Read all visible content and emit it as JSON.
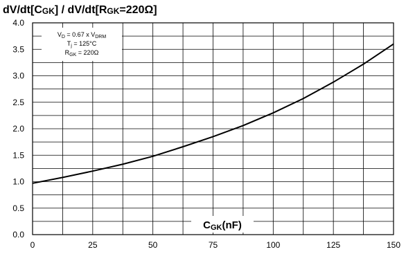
{
  "chart_data": {
    "type": "line",
    "title": {
      "part1": "dV/dt[C",
      "part1_sub": "GK",
      "part2": "] / dV/dt[R",
      "part2_sub": "GK",
      "part3": "=220Ω]"
    },
    "xlabel": {
      "main": "C",
      "sub": "GK",
      "unit": "(nF)"
    },
    "ylabel": "",
    "xlim": [
      0,
      150
    ],
    "ylim": [
      0,
      4
    ],
    "x_ticks": [
      "0",
      "25",
      "50",
      "75",
      "100",
      "125",
      "150"
    ],
    "y_ticks": [
      "0.0",
      "0.5",
      "1.0",
      "1.5",
      "2.0",
      "2.5",
      "3.0",
      "3.5",
      "4.0"
    ],
    "grid": true,
    "x_minor_per_major": 2,
    "y_minor_per_major": 2,
    "conditions": [
      {
        "main": "V",
        "sub": "D",
        "rest": " = 0.67 x V",
        "sub2": "DRM"
      },
      {
        "main": "T",
        "sub": "j",
        "rest": " = 125°C",
        "sub2": ""
      },
      {
        "main": "R",
        "sub": "GK",
        "rest": " = 220Ω",
        "sub2": ""
      }
    ],
    "series": [
      {
        "x": [
          0,
          12.5,
          25,
          37.5,
          50,
          62.5,
          75,
          87.5,
          100,
          112.5,
          125,
          137.5,
          150
        ],
        "y": [
          0.97,
          1.08,
          1.2,
          1.33,
          1.48,
          1.66,
          1.85,
          2.06,
          2.3,
          2.57,
          2.88,
          3.22,
          3.6
        ]
      }
    ],
    "colors": {
      "line": "#000000",
      "grid": "#000000",
      "background": "#ffffff"
    }
  }
}
